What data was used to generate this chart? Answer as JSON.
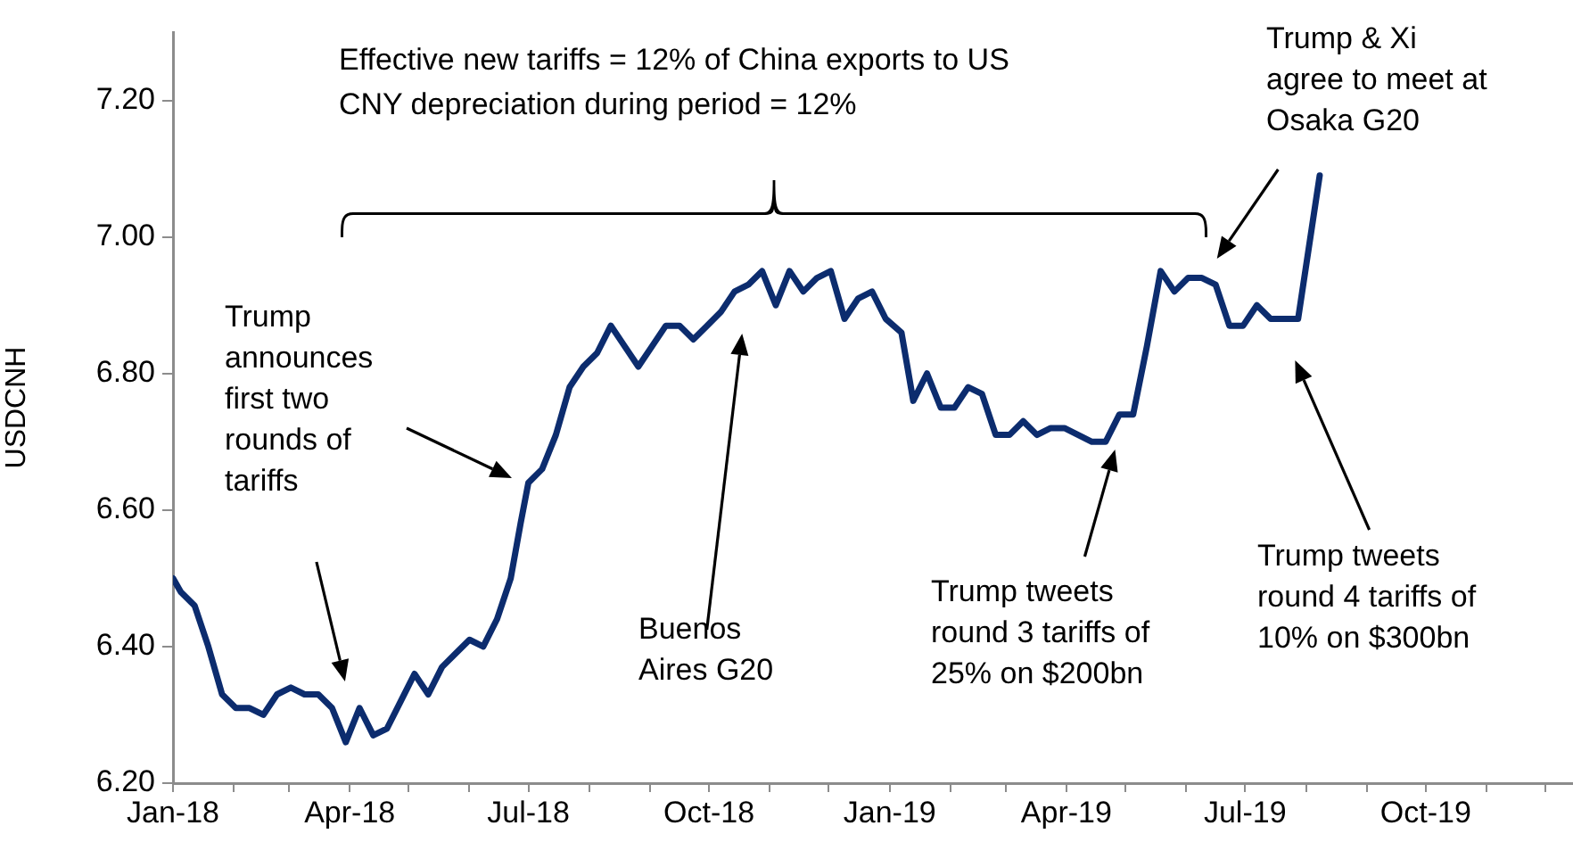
{
  "chart_data": {
    "type": "line",
    "ylabel": "USDCNH",
    "x": [
      "2018-01-01",
      "2018-01-05",
      "2018-01-12",
      "2018-01-19",
      "2018-01-26",
      "2018-02-02",
      "2018-02-09",
      "2018-02-16",
      "2018-02-23",
      "2018-03-02",
      "2018-03-09",
      "2018-03-16",
      "2018-03-23",
      "2018-03-30",
      "2018-04-06",
      "2018-04-13",
      "2018-04-20",
      "2018-04-27",
      "2018-05-04",
      "2018-05-11",
      "2018-05-18",
      "2018-05-25",
      "2018-06-01",
      "2018-06-08",
      "2018-06-15",
      "2018-06-22",
      "2018-06-27",
      "2018-07-01",
      "2018-07-08",
      "2018-07-15",
      "2018-07-22",
      "2018-07-29",
      "2018-08-05",
      "2018-08-12",
      "2018-08-19",
      "2018-08-26",
      "2018-09-02",
      "2018-09-09",
      "2018-09-16",
      "2018-09-23",
      "2018-09-30",
      "2018-10-07",
      "2018-10-14",
      "2018-10-21",
      "2018-10-28",
      "2018-11-04",
      "2018-11-11",
      "2018-11-18",
      "2018-11-25",
      "2018-12-02",
      "2018-12-09",
      "2018-12-16",
      "2018-12-23",
      "2018-12-30",
      "2019-01-07",
      "2019-01-13",
      "2019-01-20",
      "2019-01-27",
      "2019-02-03",
      "2019-02-10",
      "2019-02-17",
      "2019-02-24",
      "2019-03-03",
      "2019-03-10",
      "2019-03-17",
      "2019-03-24",
      "2019-03-31",
      "2019-04-07",
      "2019-04-14",
      "2019-04-21",
      "2019-04-28",
      "2019-05-05",
      "2019-05-12",
      "2019-05-19",
      "2019-05-26",
      "2019-06-02",
      "2019-06-09",
      "2019-06-16",
      "2019-06-23",
      "2019-06-30",
      "2019-07-07",
      "2019-07-14",
      "2019-07-21",
      "2019-07-28",
      "2019-08-08"
    ],
    "series": [
      {
        "color": "#0c2c6e",
        "values": [
          6.5,
          6.48,
          6.46,
          6.4,
          6.33,
          6.31,
          6.31,
          6.3,
          6.33,
          6.34,
          6.33,
          6.33,
          6.31,
          6.26,
          6.31,
          6.27,
          6.28,
          6.32,
          6.36,
          6.33,
          6.37,
          6.39,
          6.41,
          6.4,
          6.44,
          6.5,
          6.58,
          6.64,
          6.66,
          6.71,
          6.78,
          6.81,
          6.83,
          6.87,
          6.84,
          6.81,
          6.84,
          6.87,
          6.87,
          6.85,
          6.87,
          6.89,
          6.92,
          6.93,
          6.95,
          6.9,
          6.95,
          6.92,
          6.94,
          6.95,
          6.88,
          6.91,
          6.92,
          6.88,
          6.86,
          6.76,
          6.8,
          6.75,
          6.75,
          6.78,
          6.77,
          6.71,
          6.71,
          6.73,
          6.71,
          6.72,
          6.72,
          6.71,
          6.7,
          6.7,
          6.74,
          6.74,
          6.84,
          6.95,
          6.92,
          6.94,
          6.94,
          6.93,
          6.87,
          6.87,
          6.9,
          6.88,
          6.88,
          6.88,
          7.09
        ]
      }
    ],
    "xlim": [
      "2018-01-01",
      "2019-12-15"
    ],
    "xticks": [
      {
        "value": "2018-01-01",
        "label": "Jan-18"
      },
      {
        "value": "2018-02-01",
        "label": null
      },
      {
        "value": "2018-03-01",
        "label": null
      },
      {
        "value": "2018-04-01",
        "label": "Apr-18"
      },
      {
        "value": "2018-05-01",
        "label": null
      },
      {
        "value": "2018-06-01",
        "label": null
      },
      {
        "value": "2018-07-01",
        "label": "Jul-18"
      },
      {
        "value": "2018-08-01",
        "label": null
      },
      {
        "value": "2018-09-01",
        "label": null
      },
      {
        "value": "2018-10-01",
        "label": "Oct-18"
      },
      {
        "value": "2018-11-01",
        "label": null
      },
      {
        "value": "2018-12-01",
        "label": null
      },
      {
        "value": "2019-01-01",
        "label": "Jan-19"
      },
      {
        "value": "2019-02-01",
        "label": null
      },
      {
        "value": "2019-03-01",
        "label": null
      },
      {
        "value": "2019-04-01",
        "label": "Apr-19"
      },
      {
        "value": "2019-05-01",
        "label": null
      },
      {
        "value": "2019-06-01",
        "label": null
      },
      {
        "value": "2019-07-01",
        "label": "Jul-19"
      },
      {
        "value": "2019-08-01",
        "label": null
      },
      {
        "value": "2019-09-01",
        "label": null
      },
      {
        "value": "2019-10-01",
        "label": "Oct-19"
      },
      {
        "value": "2019-11-01",
        "label": null
      },
      {
        "value": "2019-12-01",
        "label": null
      }
    ],
    "ylim": [
      6.2,
      7.3
    ],
    "yticks": [
      {
        "value": 6.2,
        "label": "6.20"
      },
      {
        "value": 6.4,
        "label": "6.40"
      },
      {
        "value": 6.6,
        "label": "6.60"
      },
      {
        "value": 6.8,
        "label": "6.80"
      },
      {
        "value": 7.0,
        "label": "7.00"
      },
      {
        "value": 7.2,
        "label": "7.20"
      }
    ],
    "grid": false,
    "legend": false,
    "marker": "none",
    "line_style": "solid",
    "annotations": [
      "Effective new tariffs = 12% of China exports to US\nCNY depreciation during period = 12%",
      "Trump\nannounces\nfirst two\nrounds of\ntariffs",
      "Buenos\nAires G20",
      "Trump tweets\nround 3 tariffs of\n25% on $200bn",
      "Trump & Xi\nagree to meet at\nOsaka G20",
      "Trump tweets\nround 4 tariffs of\n10% on $300bn"
    ]
  }
}
